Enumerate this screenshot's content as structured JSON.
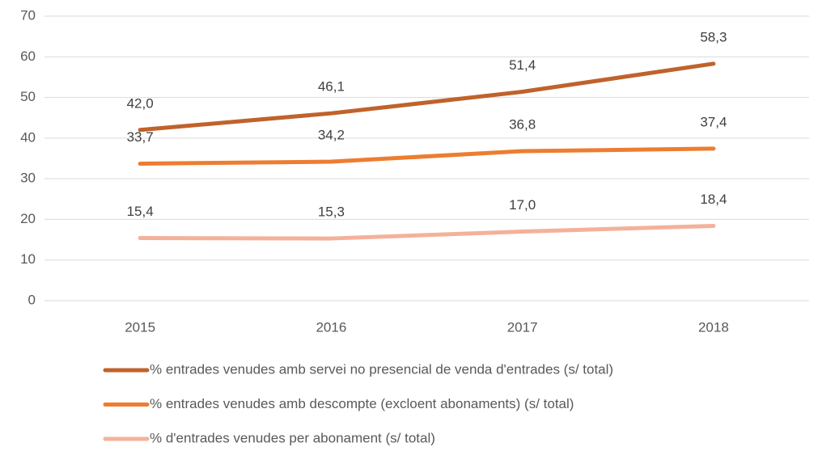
{
  "chart_data": {
    "type": "line",
    "categories": [
      "2015",
      "2016",
      "2017",
      "2018"
    ],
    "series": [
      {
        "name": "% entrades venudes amb servei no presencial de venda d'entrades (s/ total)",
        "color": "#c0622b",
        "values": [
          42.0,
          46.1,
          51.4,
          58.3
        ],
        "value_labels": [
          "42,0",
          "46,1",
          "51,4",
          "58,3"
        ]
      },
      {
        "name": "% entrades venudes amb descompte (excloent abonaments) (s/ total)",
        "color": "#ed7d31",
        "values": [
          33.7,
          34.2,
          36.8,
          37.4
        ],
        "value_labels": [
          "33,7",
          "34,2",
          "36,8",
          "37,4"
        ]
      },
      {
        "name": "% d'entrades venudes per abonament (s/ total)",
        "color": "#f4b19a",
        "values": [
          15.4,
          15.3,
          17.0,
          18.4
        ],
        "value_labels": [
          "15,4",
          "15,3",
          "17,0",
          "18,4"
        ]
      }
    ],
    "ylim": [
      0,
      70
    ],
    "yticks": [
      0,
      10,
      20,
      30,
      40,
      50,
      60,
      70
    ],
    "grid": true,
    "legend": "bottom"
  }
}
